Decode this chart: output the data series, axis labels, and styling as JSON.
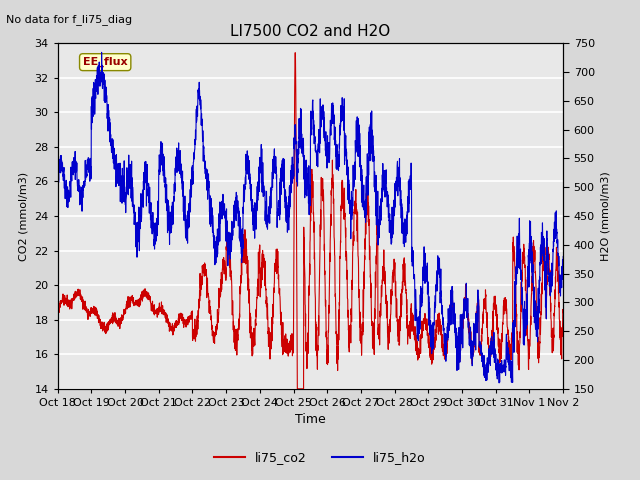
{
  "title": "LI7500 CO2 and H2O",
  "subtitle": "No data for f_li75_diag",
  "xlabel": "Time",
  "ylabel_left": "CO2 (mmol/m3)",
  "ylabel_right": "H2O (mmol/m3)",
  "ylim_left": [
    14,
    34
  ],
  "ylim_right": [
    150,
    750
  ],
  "yticks_left": [
    14,
    16,
    18,
    20,
    22,
    24,
    26,
    28,
    30,
    32,
    34
  ],
  "yticks_right": [
    150,
    200,
    250,
    300,
    350,
    400,
    450,
    500,
    550,
    600,
    650,
    700,
    750
  ],
  "xtick_labels": [
    "Oct 18",
    "Oct 19",
    "Oct 20",
    "Oct 21",
    "Oct 22",
    "Oct 23",
    "Oct 24",
    "Oct 25",
    "Oct 26",
    "Oct 27",
    "Oct 28",
    "Oct 29",
    "Oct 30",
    "Oct 31",
    "Nov 1",
    "Nov 2"
  ],
  "co2_color": "#cc0000",
  "h2o_color": "#0000cc",
  "legend_box_color": "#ffffcc",
  "legend_box_label": "EE_flux",
  "bg_color": "#d8d8d8",
  "plot_bg_color": "#e8e8e8",
  "grid_color": "#ffffff",
  "figsize": [
    6.4,
    4.8
  ],
  "dpi": 100
}
